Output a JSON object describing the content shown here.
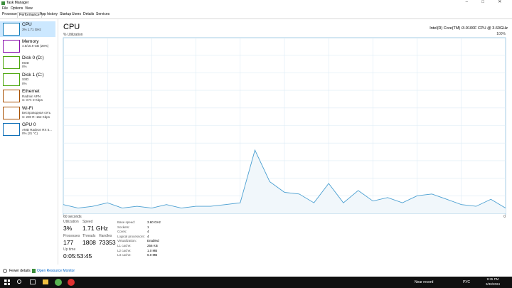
{
  "window": {
    "title": "Task Manager"
  },
  "menu": [
    "File",
    "Options",
    "View"
  ],
  "tabs": [
    "Processes",
    "Performance",
    "App history",
    "Startup",
    "Users",
    "Details",
    "Services"
  ],
  "sidebar": [
    {
      "name": "CPU",
      "lines": [
        "3%  1.71 GHz"
      ],
      "color": "#117dbb"
    },
    {
      "name": "Memory",
      "lines": [
        "4.5/15.9 GB (28%)"
      ],
      "color": "#8b12ae"
    },
    {
      "name": "Disk 0 (D:)",
      "lines": [
        "HDD",
        "0%"
      ],
      "color": "#4da60c"
    },
    {
      "name": "Disk 1 (C:)",
      "lines": [
        "SSD",
        "0%"
      ],
      "color": "#4da60c"
    },
    {
      "name": "Ethernet",
      "lines": [
        "Radmin VPN",
        "S: 0  R: 0 Kbps"
      ],
      "color": "#a74f01"
    },
    {
      "name": "Wi-Fi",
      "lines": [
        "Беспроводная сеть",
        "S: 200  R: 152 Kbps"
      ],
      "color": "#a74f01"
    },
    {
      "name": "GPU 0",
      "lines": [
        "AMD Radeon RX 5...",
        "0% (31 °C)"
      ],
      "color": "#0e6fb8"
    }
  ],
  "panel": {
    "title": "CPU",
    "processor": "Intel(R) Core(TM) i3-9100F CPU @ 3.60GHz"
  },
  "chart_data": {
    "type": "area",
    "y_label": "% Utilization",
    "x": [
      60,
      58,
      56,
      54,
      52,
      50,
      48,
      46,
      44,
      42,
      40,
      38,
      36,
      34,
      32,
      30,
      28,
      26,
      24,
      22,
      20,
      18,
      16,
      14,
      12,
      10,
      8,
      6,
      4,
      2,
      0
    ],
    "values": [
      5,
      3,
      4,
      6,
      3,
      4,
      3,
      5,
      3,
      4,
      4,
      5,
      6,
      36,
      18,
      12,
      11,
      6,
      17,
      6,
      13,
      7,
      9,
      6,
      10,
      11,
      8,
      5,
      4,
      8,
      3
    ],
    "xlim": [
      60,
      0
    ],
    "xticks": [
      {
        "value": 60,
        "label": "60 seconds"
      },
      0
    ],
    "ylim": [
      0,
      100
    ],
    "yticks": [
      {
        "value": 100,
        "label": "100%"
      }
    ],
    "grid": true,
    "color": "#4a9fd1"
  },
  "stats": [
    {
      "label": "Utilization",
      "value": "3%"
    },
    {
      "label": "Speed",
      "value": "1.71 GHz"
    },
    {
      "label": "Processes",
      "value": "177"
    },
    {
      "label": "Threads",
      "value": "1808"
    },
    {
      "label": "Handles",
      "value": "73353"
    },
    {
      "label": "Up time",
      "value": "0:05:53:45"
    }
  ],
  "specs": [
    {
      "label": "Base speed:",
      "value": "3.60 GHz"
    },
    {
      "label": "Sockets:",
      "value": "1"
    },
    {
      "label": "Cores:",
      "value": "4"
    },
    {
      "label": "Logical processors:",
      "value": "4"
    },
    {
      "label": "Virtualization:",
      "value": "Enabled"
    },
    {
      "label": "L1 cache:",
      "value": "256 KB"
    },
    {
      "label": "L2 cache:",
      "value": "1.0 MB"
    },
    {
      "label": "L3 cache:",
      "value": "6.0 MB"
    }
  ],
  "footer": {
    "fewer": "Fewer details",
    "monitor": "Open Resource Monitor"
  },
  "taskbar": {
    "notice": "Near record",
    "lang": "РУС",
    "time": "9:35 PM",
    "date": "3/30/2024"
  }
}
